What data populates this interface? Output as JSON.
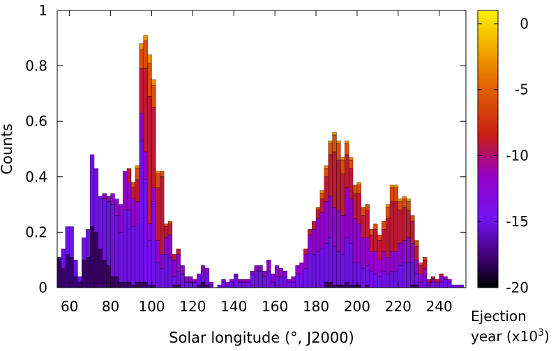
{
  "chart_data": {
    "type": "bar",
    "stacked": true,
    "title": "",
    "xlabel": "Solar longitude (°, J2000)",
    "ylabel": "Counts",
    "xlim": [
      54,
      253
    ],
    "ylim": [
      0,
      1
    ],
    "bin_width": 2,
    "x_ticks": [
      60,
      80,
      100,
      120,
      140,
      160,
      180,
      200,
      220,
      240
    ],
    "y_ticks": [
      0,
      0.2,
      0.4,
      0.6,
      0.8,
      1
    ],
    "y_tick_labels": [
      "0",
      "0.2",
      "0.4",
      "0.6",
      "0.8",
      "1"
    ],
    "grid": false,
    "colorbar": {
      "label_line1": "Ejection",
      "label_line2_prefix": "year (x10",
      "label_line2_exp": "3",
      "label_line2_suffix": ")",
      "range": [
        -20,
        1
      ],
      "ticks": [
        0,
        -5,
        -10,
        -15,
        -20
      ],
      "tick_labels": [
        "0",
        "-5",
        "-10",
        "-15",
        "-20"
      ],
      "colormap": "gnuplot-pm3d-black-purple-red-orange-yellow"
    },
    "series": [
      {
        "ejection_year_kyr": -18,
        "values": [
          0.11,
          0.07,
          0.12,
          0.11,
          0.04,
          0.02,
          0.1,
          0.11,
          0.22,
          0.2,
          0.14,
          0.1,
          0.08,
          0.04,
          0.04,
          0.02,
          0.02,
          0.02,
          0.01,
          0.02,
          0.02,
          0.02,
          0.01,
          0.01,
          0,
          0,
          0,
          0,
          0.01,
          0.01,
          0,
          0,
          0,
          0,
          0.01,
          0.02,
          0.01,
          0,
          0,
          0,
          0,
          0,
          0,
          0,
          0,
          0,
          0,
          0,
          0,
          0,
          0,
          0,
          0,
          0,
          0,
          0,
          0,
          0,
          0,
          0,
          0,
          0,
          0,
          0,
          0,
          0.02,
          0.02,
          0.01,
          0.01,
          0.01,
          0.02,
          0.01,
          0.01,
          0.01,
          0,
          0.01,
          0,
          0,
          0,
          0,
          0,
          0,
          0,
          0,
          0,
          0,
          0.01,
          0.01,
          0,
          0,
          0,
          0,
          0,
          0,
          0,
          0,
          0,
          0,
          0,
          0,
          0
        ]
      },
      {
        "ejection_year_kyr": -15,
        "values": [
          0,
          0.07,
          0.1,
          0.11,
          0.06,
          0.02,
          0.08,
          0.1,
          0.26,
          0.23,
          0.19,
          0.22,
          0.23,
          0.26,
          0.22,
          0.18,
          0.26,
          0.26,
          0.21,
          0.21,
          0.51,
          0.37,
          0.16,
          0.3,
          0.09,
          0.07,
          0.12,
          0.11,
          0.03,
          0.05,
          0.05,
          0.02,
          0.02,
          0.02,
          0.03,
          0.04,
          0.04,
          0.01,
          0,
          0,
          0.02,
          0.01,
          0.02,
          0.04,
          0.02,
          0.02,
          0.02,
          0.05,
          0.06,
          0.06,
          0.04,
          0.06,
          0.02,
          0.04,
          0.04,
          0.04,
          0.02,
          0.02,
          0.05,
          0.05,
          0.07,
          0.13,
          0.12,
          0.13,
          0.14,
          0.14,
          0.16,
          0.14,
          0.12,
          0.11,
          0.16,
          0.15,
          0.08,
          0.08,
          0.07,
          0.07,
          0.06,
          0.05,
          0.04,
          0.06,
          0.05,
          0.06,
          0.06,
          0.08,
          0.09,
          0.09,
          0.08,
          0.04,
          0.02,
          0.04,
          0.01,
          0.02,
          0.01,
          0.02,
          0.03,
          0.02,
          0.01,
          0.01,
          0.01,
          0
        ]
      },
      {
        "ejection_year_kyr": -12,
        "values": [
          0,
          0,
          0,
          0,
          0,
          0,
          0,
          0,
          0,
          0,
          0,
          0.02,
          0.02,
          0.04,
          0.06,
          0.1,
          0.14,
          0.1,
          0.1,
          0.08,
          0.1,
          0.1,
          0.06,
          0.05,
          0.08,
          0.05,
          0.06,
          0.08,
          0.06,
          0.06,
          0.03,
          0.02,
          0.02,
          0.01,
          0.01,
          0.02,
          0.02,
          0.01,
          0,
          0.01,
          0.01,
          0.01,
          0.01,
          0.01,
          0.01,
          0.01,
          0.01,
          0.01,
          0.02,
          0.02,
          0.02,
          0.04,
          0.03,
          0.04,
          0.03,
          0.02,
          0.01,
          0.02,
          0.03,
          0.04,
          0.05,
          0.06,
          0.09,
          0.12,
          0.13,
          0.15,
          0.15,
          0.14,
          0.15,
          0.14,
          0.18,
          0.16,
          0.16,
          0.14,
          0.11,
          0.1,
          0.07,
          0.08,
          0.06,
          0.07,
          0.06,
          0.07,
          0.07,
          0.08,
          0.08,
          0.09,
          0.07,
          0.05,
          0.03,
          0.03,
          0.01,
          0.01,
          0.01,
          0.02,
          0.01,
          0.01,
          0,
          0,
          0,
          0
        ]
      },
      {
        "ejection_year_kyr": -9,
        "values": [
          0,
          0,
          0,
          0,
          0,
          0,
          0,
          0,
          0,
          0,
          0,
          0,
          0,
          0,
          0,
          0,
          0,
          0.05,
          0.04,
          0.08,
          0.16,
          0.3,
          0.46,
          0.29,
          0.19,
          0.28,
          0.04,
          0.04,
          0.02,
          0.02,
          0,
          0,
          0,
          0,
          0,
          0,
          0,
          0,
          0,
          0,
          0,
          0,
          0,
          0,
          0,
          0,
          0,
          0,
          0,
          0,
          0,
          0,
          0,
          0,
          0,
          0,
          0,
          0,
          0,
          0,
          0.02,
          0.02,
          0.03,
          0.03,
          0.05,
          0.09,
          0.15,
          0.2,
          0.18,
          0.15,
          0.12,
          0.11,
          0.09,
          0.11,
          0.08,
          0.1,
          0.06,
          0.08,
          0.07,
          0.08,
          0.14,
          0.18,
          0.18,
          0.12,
          0.12,
          0.1,
          0.08,
          0.05,
          0.03,
          0.03,
          0.01,
          0.01,
          0.01,
          0.01,
          0,
          0,
          0,
          0,
          0,
          0
        ]
      },
      {
        "ejection_year_kyr": -6,
        "values": [
          0,
          0,
          0,
          0,
          0,
          0,
          0,
          0,
          0,
          0,
          0,
          0,
          0,
          0,
          0,
          0,
          0,
          0,
          0.02,
          0.04,
          0.07,
          0.1,
          0.12,
          0.08,
          0.05,
          0.02,
          0.01,
          0.01,
          0,
          0,
          0,
          0,
          0,
          0,
          0,
          0,
          0,
          0,
          0,
          0,
          0,
          0,
          0,
          0,
          0,
          0,
          0,
          0,
          0,
          0,
          0,
          0,
          0,
          0,
          0,
          0,
          0,
          0,
          0,
          0,
          0,
          0,
          0,
          0.01,
          0.02,
          0.03,
          0.04,
          0.06,
          0.06,
          0.05,
          0.04,
          0.03,
          0.03,
          0.03,
          0.03,
          0.02,
          0.02,
          0.02,
          0.02,
          0.03,
          0.04,
          0.05,
          0.05,
          0.03,
          0.03,
          0.03,
          0.02,
          0.02,
          0.01,
          0.01,
          0,
          0,
          0,
          0,
          0,
          0,
          0,
          0,
          0,
          0
        ]
      },
      {
        "ejection_year_kyr": -3,
        "values": [
          0,
          0,
          0,
          0,
          0,
          0,
          0,
          0,
          0,
          0,
          0,
          0,
          0,
          0,
          0,
          0,
          0,
          0,
          0,
          0.01,
          0.02,
          0.02,
          0.03,
          0.02,
          0.01,
          0,
          0,
          0,
          0,
          0,
          0,
          0,
          0,
          0,
          0,
          0,
          0,
          0,
          0,
          0,
          0,
          0,
          0,
          0,
          0,
          0,
          0,
          0,
          0,
          0,
          0,
          0,
          0,
          0,
          0,
          0,
          0,
          0,
          0,
          0,
          0,
          0,
          0,
          0,
          0.01,
          0.01,
          0.01,
          0.01,
          0.01,
          0.01,
          0.01,
          0.01,
          0,
          0.01,
          0,
          0,
          0,
          0,
          0,
          0,
          0.01,
          0.01,
          0.01,
          0.01,
          0.01,
          0.01,
          0,
          0,
          0,
          0,
          0,
          0,
          0,
          0,
          0,
          0,
          0,
          0,
          0,
          0
        ]
      }
    ]
  }
}
